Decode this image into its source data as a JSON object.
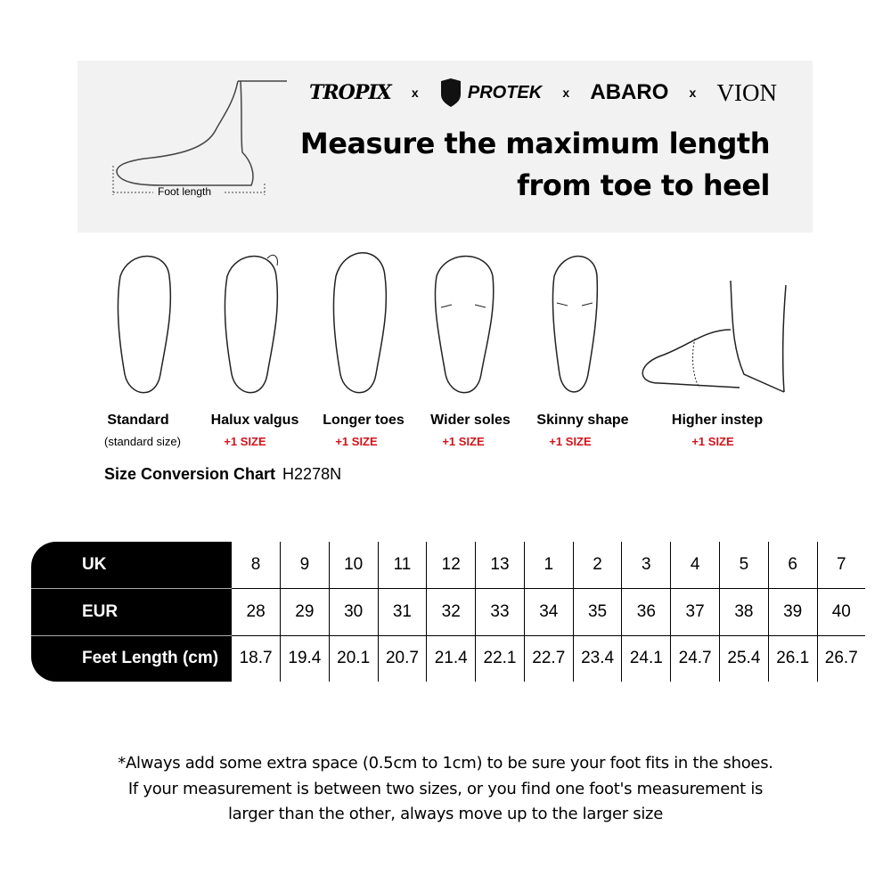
{
  "banner": {
    "brands": [
      "TROPIX",
      "PROTEK",
      "ABARO",
      "VION"
    ],
    "separator": "x",
    "headline_line1": "Measure the maximum length",
    "headline_line2": "from toe to heel",
    "foot_length_label": "Foot length"
  },
  "foot_types": [
    {
      "label": "Standard",
      "note": "(standard size)"
    },
    {
      "label": "Halux valgus",
      "note": "+1 SIZE"
    },
    {
      "label": "Longer toes",
      "note": "+1 SIZE"
    },
    {
      "label": "Wider soles",
      "note": "+1 SIZE"
    },
    {
      "label": "Skinny shape",
      "note": "+1 SIZE"
    },
    {
      "label": "Higher instep",
      "note": "+1 SIZE"
    }
  ],
  "accent_color": "#d0141b",
  "chart_title": "Size Conversion Chart",
  "model": "H2278N",
  "size_table": {
    "rows": [
      {
        "label": "UK",
        "values": [
          "8",
          "9",
          "10",
          "11",
          "12",
          "13",
          "1",
          "2",
          "3",
          "4",
          "5",
          "6",
          "7"
        ]
      },
      {
        "label": "EUR",
        "values": [
          "28",
          "29",
          "30",
          "31",
          "32",
          "33",
          "34",
          "35",
          "36",
          "37",
          "38",
          "39",
          "40"
        ]
      },
      {
        "label": "Feet Length (cm)",
        "values": [
          "18.7",
          "19.4",
          "20.1",
          "20.7",
          "21.4",
          "22.1",
          "22.7",
          "23.4",
          "24.1",
          "24.7",
          "25.4",
          "26.1",
          "26.7"
        ]
      }
    ]
  },
  "notes": [
    "*Always add some extra space (0.5cm to 1cm) to be sure your foot fits in the shoes.",
    "If your measurement is between two sizes, or you find one foot's measurement is",
    "larger than the other, always move up to the larger size"
  ]
}
